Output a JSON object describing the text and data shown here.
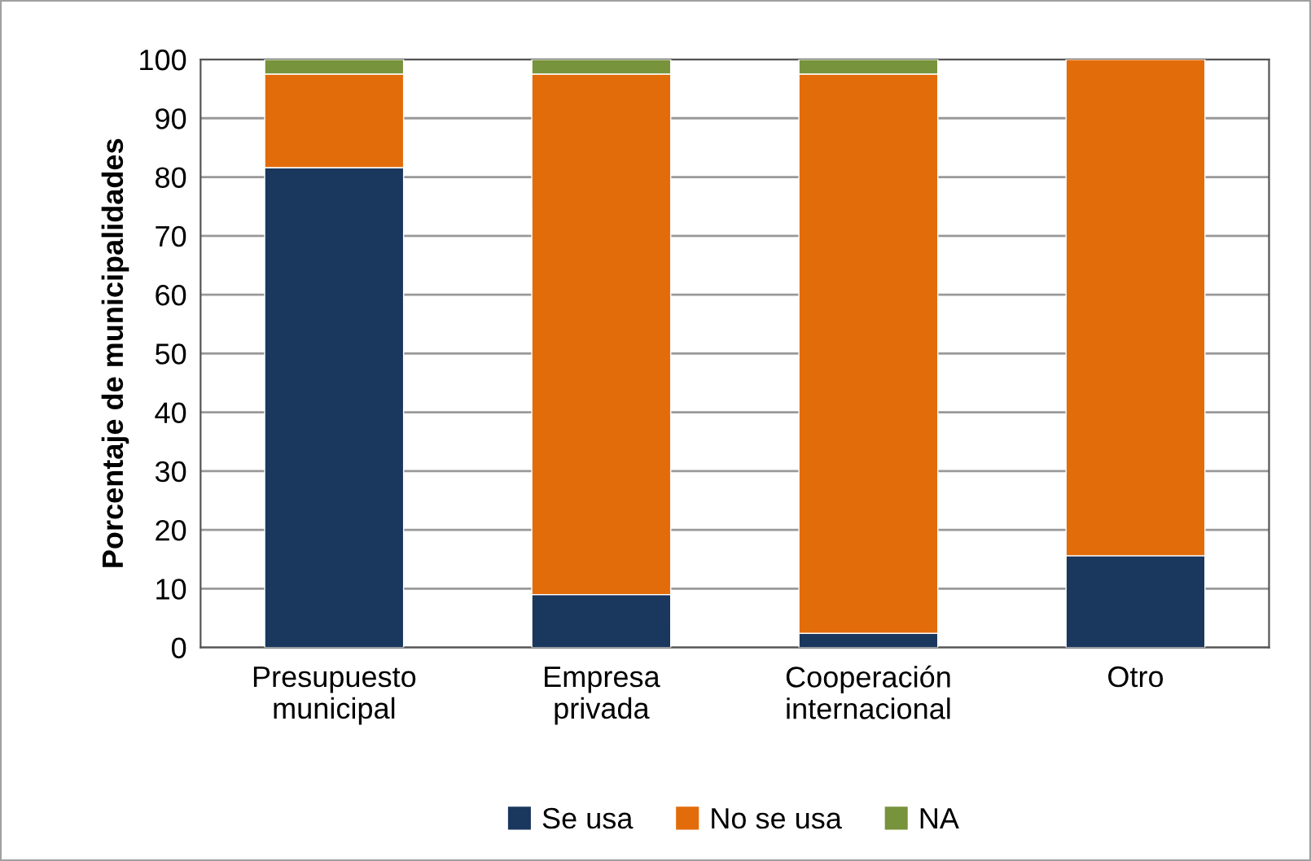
{
  "chart_data": {
    "type": "bar",
    "stacked": true,
    "ylabel": "Porcentaje de municipalidades",
    "categories": [
      "Presupuesto\nmunicipal",
      "Empresa\nprivada",
      "Cooperación\ninternacional",
      "Otro"
    ],
    "series": [
      {
        "name": "Se usa",
        "color": "#1a375e",
        "values": [
          81.6,
          9.0,
          2.4,
          15.6
        ]
      },
      {
        "name": "No se usa",
        "color": "#e36c0a",
        "values": [
          15.9,
          88.5,
          95.1,
          84.4
        ]
      },
      {
        "name": "NA",
        "color": "#77933c",
        "values": [
          2.5,
          2.5,
          2.5,
          null
        ]
      }
    ],
    "ylim": [
      0,
      100
    ],
    "yticks": [
      0,
      10,
      20,
      30,
      40,
      50,
      60,
      70,
      80,
      90,
      100
    ],
    "grid": "y",
    "legend": "bottom"
  }
}
